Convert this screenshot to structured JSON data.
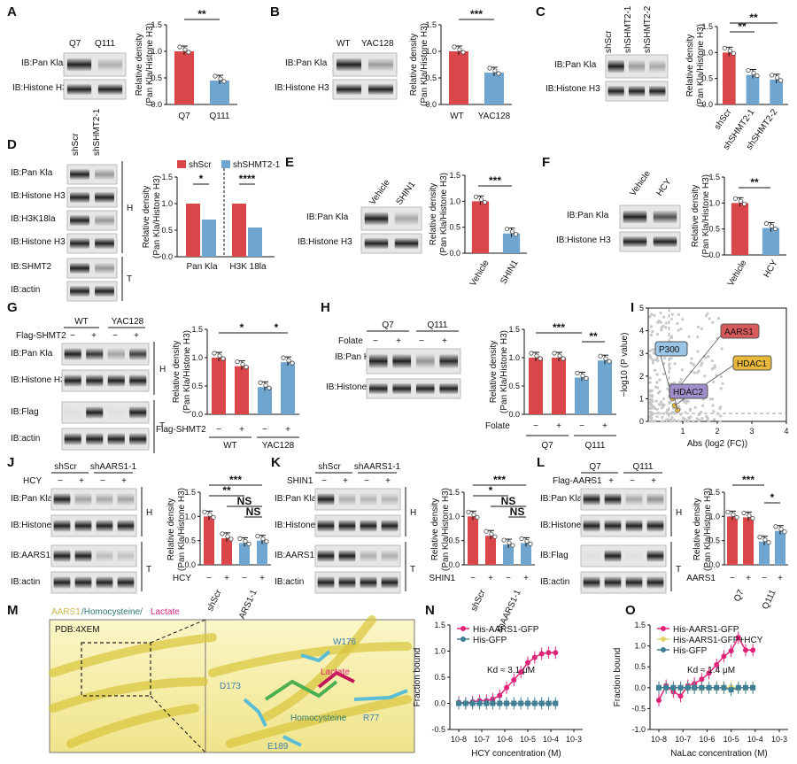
{
  "panels": {
    "A": {
      "label": "A",
      "lanes": [
        "Q7",
        "Q111"
      ],
      "blots": [
        "IB:Pan Kla",
        "IB:Histone H3"
      ],
      "ylabel": [
        "Relative density",
        "(Pan Kla/Histone H3)"
      ],
      "xticks": [
        "Q7",
        "Q111"
      ],
      "sig": "**"
    },
    "B": {
      "label": "B",
      "lanes": [
        "WT",
        "YAC128"
      ],
      "blots": [
        "IB:Pan Kla",
        "IB:Histone H3"
      ],
      "ylabel": [
        "Relative density",
        "(Pan Kla/Histone H3)"
      ],
      "xticks": [
        "WT",
        "YAC128"
      ],
      "sig": "***"
    },
    "C": {
      "label": "C",
      "lanes": [
        "shScr",
        "shSHMT2-1",
        "shSHMT2-2"
      ],
      "blots": [
        "IB:Pan Kla",
        "IB:Histone H3"
      ],
      "ylabel": [
        "Relative density",
        "(Pan Kla/Histone H3)"
      ],
      "xticks": [
        "shScr",
        "shSHMT2-1",
        "shSHMT2-2"
      ],
      "sig": [
        "**",
        "**"
      ]
    },
    "D": {
      "label": "D",
      "lanes": [
        "shScr",
        "shSHMT2-1"
      ],
      "blots": [
        "IB:Pan Kla",
        "IB:Histone H3",
        "IB:H3K18la",
        "IB:Histone H3",
        "IB:SHMT2",
        "IB:actin"
      ],
      "groups": [
        "H",
        "T"
      ],
      "legend": [
        "shScr",
        "shSHMT2-1"
      ],
      "ylabel": [
        "Relative density",
        "(Pan Kla/Histone H3)"
      ],
      "xticks": [
        "Pan Kla",
        "H3K 18la"
      ],
      "sig": [
        "*",
        "****"
      ]
    },
    "E": {
      "label": "E",
      "lanes": [
        "Vehicle",
        "SHIN1"
      ],
      "blots": [
        "IB:Pan Kla",
        "IB:Histone H3"
      ],
      "ylabel": [
        "Relative density",
        "(Pan Kla/Histone H3)"
      ],
      "xticks": [
        "Vehicle",
        "SHIN1"
      ],
      "sig": "***"
    },
    "F": {
      "label": "F",
      "lanes": [
        "Vehicle",
        "HCY"
      ],
      "blots": [
        "IB:Pan Kla",
        "IB:Histone H3"
      ],
      "ylabel": [
        "Relative density",
        "(Pan Kla/Histone H3)"
      ],
      "xticks": [
        "Vehicle",
        "HCY"
      ],
      "sig": "**"
    },
    "G": {
      "label": "G",
      "groups_top": [
        "WT",
        "YAC128"
      ],
      "treat": "Flag-SHMT2",
      "signs": [
        "−",
        "+",
        "−",
        "+"
      ],
      "blots": [
        "IB:Pan Kla",
        "IB:Histone H3",
        "IB:Flag",
        "IB:actin"
      ],
      "groups": [
        "H",
        "T"
      ],
      "ylabel": [
        "Relative density",
        "(Pan Kla/Histone H3)"
      ],
      "xgroups": [
        "WT",
        "YAC128"
      ],
      "sig": [
        "*",
        "*"
      ]
    },
    "H": {
      "label": "H",
      "groups_top": [
        "Q7",
        "Q111"
      ],
      "treat": "Folate",
      "signs": [
        "−",
        "+",
        "−",
        "+"
      ],
      "blots": [
        "IB:Pan Kla",
        "IB:Histone H3"
      ],
      "ylabel": [
        "Relative density",
        "(Pan Kla/Histone H3)"
      ],
      "xgroups": [
        "Q7",
        "Q111"
      ],
      "sig": [
        "***",
        "**"
      ]
    },
    "I": {
      "label": "I",
      "ylabel": "−log10 (P value)",
      "xlabel": "Abs (log2 (FC))",
      "xticks": [
        "1",
        "2",
        "3",
        "4"
      ],
      "yticks": [
        "0",
        "1",
        "2",
        "3",
        "4",
        "5"
      ],
      "callouts": [
        "AARS1",
        "P300",
        "HDAC1",
        "HDAC2"
      ]
    },
    "J": {
      "label": "J",
      "groups_top": [
        "shScr",
        "shAARS1-1"
      ],
      "treat": "HCY",
      "signs": [
        "−",
        "+",
        "−",
        "+"
      ],
      "blots": [
        "IB:Pan Kla",
        "IB:Histone H3",
        "IB:AARS1",
        "IB:actin"
      ],
      "groups": [
        "H",
        "T"
      ],
      "ylabel": [
        "Relative density",
        "(Pan Kla/Histone H3)"
      ],
      "xgroups": [
        "shScr",
        "shAARS1-1"
      ],
      "sig": [
        "***",
        "**",
        "NS",
        "NS"
      ]
    },
    "K": {
      "label": "K",
      "groups_top": [
        "shScr",
        "shAARS1-1"
      ],
      "treat": "SHIN1",
      "signs": [
        "−",
        "+",
        "−",
        "+"
      ],
      "blots": [
        "IB:Pan Kla",
        "IB:Histone H3",
        "IB:AARS1",
        "IB:actin"
      ],
      "groups": [
        "H",
        "T"
      ],
      "ylabel": [
        "Relative density",
        "(Pan Kla/Histone H3)"
      ],
      "xgroups": [
        "shScr",
        "shAARS1-1"
      ],
      "sig": [
        "***",
        "*",
        "NS",
        "NS"
      ]
    },
    "L": {
      "label": "L",
      "groups_top": [
        "Q7",
        "Q111"
      ],
      "treat": "Flag-AARS1",
      "treat2": "AARS1",
      "signs": [
        "−",
        "+",
        "−",
        "+"
      ],
      "blots": [
        "IB:Pan Kla",
        "IB:Histone H3",
        "IB:Flag",
        "IB:actin"
      ],
      "groups": [
        "H",
        "T"
      ],
      "ylabel": [
        "Relative density",
        "(Pan Kla/Histone H3)"
      ],
      "xgroups": [
        "Q7",
        "Q111"
      ],
      "sig": [
        "***",
        "*"
      ]
    },
    "M": {
      "label": "M",
      "title_a": "AARS1",
      "title_b": "/Homocysteine/",
      "title_c": "Lactate",
      "pdb": "PDB:4XEM",
      "residues": [
        "W176",
        "Lactate",
        "D173",
        "R77",
        "Homocysteine",
        "E189"
      ]
    },
    "N": {
      "label": "N",
      "legend": [
        "His-AARS1-GFP",
        "His-GFP"
      ],
      "kd": "Kd ≈ 3.1 μM",
      "ylabel": "Fraction bound",
      "xlabel": "HCY concentration (M)",
      "yticks": [
        "-0.5",
        "0.0",
        "0.5",
        "1.0",
        "1.5"
      ],
      "xticks": [
        "10-8",
        "10-7",
        "10-6",
        "10-5",
        "10-4",
        "10-3"
      ]
    },
    "O": {
      "label": "O",
      "legend": [
        "His-AARS1-GFP",
        "His-AARS1-GFP+HCY",
        "His-GFP"
      ],
      "kd": "Kd ≈ 1.4 μM",
      "ylabel": "Fraction bound",
      "xlabel": "NaLac concentration (M)",
      "yticks": [
        "-1.0",
        "-0.5",
        "0.0",
        "0.5",
        "1.0",
        "1.5"
      ],
      "xticks": [
        "10-8",
        "10-7",
        "10-6",
        "10-5",
        "10-4",
        "10-3"
      ]
    }
  },
  "colors": {
    "red": "#d9474a",
    "blue": "#6fa5cf",
    "pink": "#e0247a",
    "teal": "#3f7f96",
    "yellow": "#e3d36b"
  },
  "chart_data": [
    {
      "type": "bar",
      "categories": [
        "Q7",
        "Q111"
      ],
      "values": [
        1.0,
        0.45
      ]
    },
    {
      "type": "bar",
      "categories": [
        "WT",
        "YAC128"
      ],
      "values": [
        1.0,
        0.6
      ]
    },
    {
      "type": "bar",
      "categories": [
        "shScr",
        "shSHMT2-1",
        "shSHMT2-2"
      ],
      "values": [
        1.0,
        0.57,
        0.48
      ]
    },
    {
      "type": "bar",
      "categories": [
        "Pan Kla",
        "H3K 18la"
      ],
      "series": [
        {
          "name": "shScr",
          "values": [
            1.0,
            1.0
          ]
        },
        {
          "name": "shSHMT2-1",
          "values": [
            0.7,
            0.55
          ]
        }
      ]
    },
    {
      "type": "bar",
      "categories": [
        "Vehicle",
        "SHIN1"
      ],
      "values": [
        1.0,
        0.38
      ]
    },
    {
      "type": "bar",
      "categories": [
        "Vehicle",
        "HCY"
      ],
      "values": [
        1.0,
        0.52
      ]
    },
    {
      "type": "bar",
      "categories": [
        "WT −",
        "WT +",
        "YAC128 −",
        "YAC128 +"
      ],
      "values": [
        1.0,
        0.85,
        0.48,
        0.92
      ]
    },
    {
      "type": "bar",
      "categories": [
        "Q7 −",
        "Q7 +",
        "Q111 −",
        "Q111 +"
      ],
      "values": [
        1.0,
        1.0,
        0.65,
        0.95
      ]
    },
    {
      "type": "bar",
      "categories": [
        "shScr −",
        "shScr +",
        "shAARS1-1 −",
        "shAARS1-1 +"
      ],
      "values": [
        1.0,
        0.55,
        0.45,
        0.5
      ]
    },
    {
      "type": "bar",
      "categories": [
        "shScr −",
        "shScr +",
        "shAARS1-1 −",
        "shAARS1-1 +"
      ],
      "values": [
        1.0,
        0.6,
        0.42,
        0.45
      ]
    },
    {
      "type": "bar",
      "categories": [
        "Q7 −",
        "Q7 +",
        "Q111 −",
        "Q111 +"
      ],
      "values": [
        1.0,
        0.98,
        0.48,
        0.7
      ]
    },
    {
      "type": "scatter",
      "xlabel": "Abs (log2 (FC))",
      "ylabel": "−log10 (P value)",
      "xlim": [
        0,
        4
      ],
      "ylim": [
        0,
        5
      ]
    },
    {
      "type": "line",
      "xlabel": "HCY concentration (M)",
      "ylabel": "Fraction bound",
      "ylim": [
        -0.5,
        1.5
      ],
      "series": [
        {
          "name": "His-AARS1-GFP",
          "x": [
            1e-08,
            2e-08,
            4e-08,
            8e-08,
            1.6e-07,
            3e-07,
            6e-07,
            1.2e-06,
            2.5e-06,
            5e-06,
            1e-05,
            2e-05,
            4e-05,
            8e-05,
            0.00016
          ],
          "y": [
            0.02,
            0.0,
            0.03,
            0.05,
            0.05,
            0.08,
            0.15,
            0.3,
            0.45,
            0.6,
            0.78,
            0.88,
            0.95,
            0.97,
            0.97
          ]
        },
        {
          "name": "His-GFP",
          "x": [
            1e-08,
            2e-08,
            4e-08,
            8e-08,
            1.6e-07,
            3e-07,
            6e-07,
            1.2e-06,
            2.5e-06,
            5e-06,
            1e-05,
            2e-05,
            4e-05,
            8e-05,
            0.00016
          ],
          "y": [
            0.0,
            0.0,
            0.0,
            0.0,
            0.0,
            0.0,
            0.0,
            0.0,
            0.0,
            0.0,
            0.0,
            0.0,
            0.0,
            0.0,
            0.0
          ]
        }
      ]
    },
    {
      "type": "line",
      "xlabel": "NaLac concentration (M)",
      "ylabel": "Fraction bound",
      "ylim": [
        -1.0,
        1.5
      ],
      "series": [
        {
          "name": "His-AARS1-GFP",
          "x": [
            1e-08,
            2e-08,
            4e-08,
            8e-08,
            1.6e-07,
            3e-07,
            6e-07,
            1.2e-06,
            2.5e-06,
            5e-06,
            1e-05,
            2e-05,
            4e-05,
            8e-05
          ],
          "y": [
            -0.3,
            0.05,
            -0.1,
            -0.2,
            0.05,
            0.1,
            0.2,
            0.35,
            0.55,
            0.75,
            0.88,
            1.2,
            0.9,
            0.9
          ]
        },
        {
          "name": "His-AARS1-GFP+HCY",
          "x": [
            1e-08,
            2e-08,
            4e-08,
            8e-08,
            1.6e-07,
            3e-07,
            6e-07,
            1.2e-06,
            2.5e-06,
            5e-06,
            1e-05,
            2e-05,
            4e-05,
            8e-05
          ],
          "y": [
            0,
            0,
            0,
            0,
            0,
            0,
            0,
            0,
            0,
            0,
            0,
            0,
            0,
            0
          ]
        },
        {
          "name": "His-GFP",
          "x": [
            1e-08,
            2e-08,
            4e-08,
            8e-08,
            1.6e-07,
            3e-07,
            6e-07,
            1.2e-06,
            2.5e-06,
            5e-06,
            1e-05,
            2e-05,
            4e-05,
            8e-05
          ],
          "y": [
            0,
            0,
            0,
            0,
            0,
            0,
            0,
            0,
            0,
            0,
            -0.05,
            0,
            0,
            0
          ]
        }
      ]
    }
  ]
}
